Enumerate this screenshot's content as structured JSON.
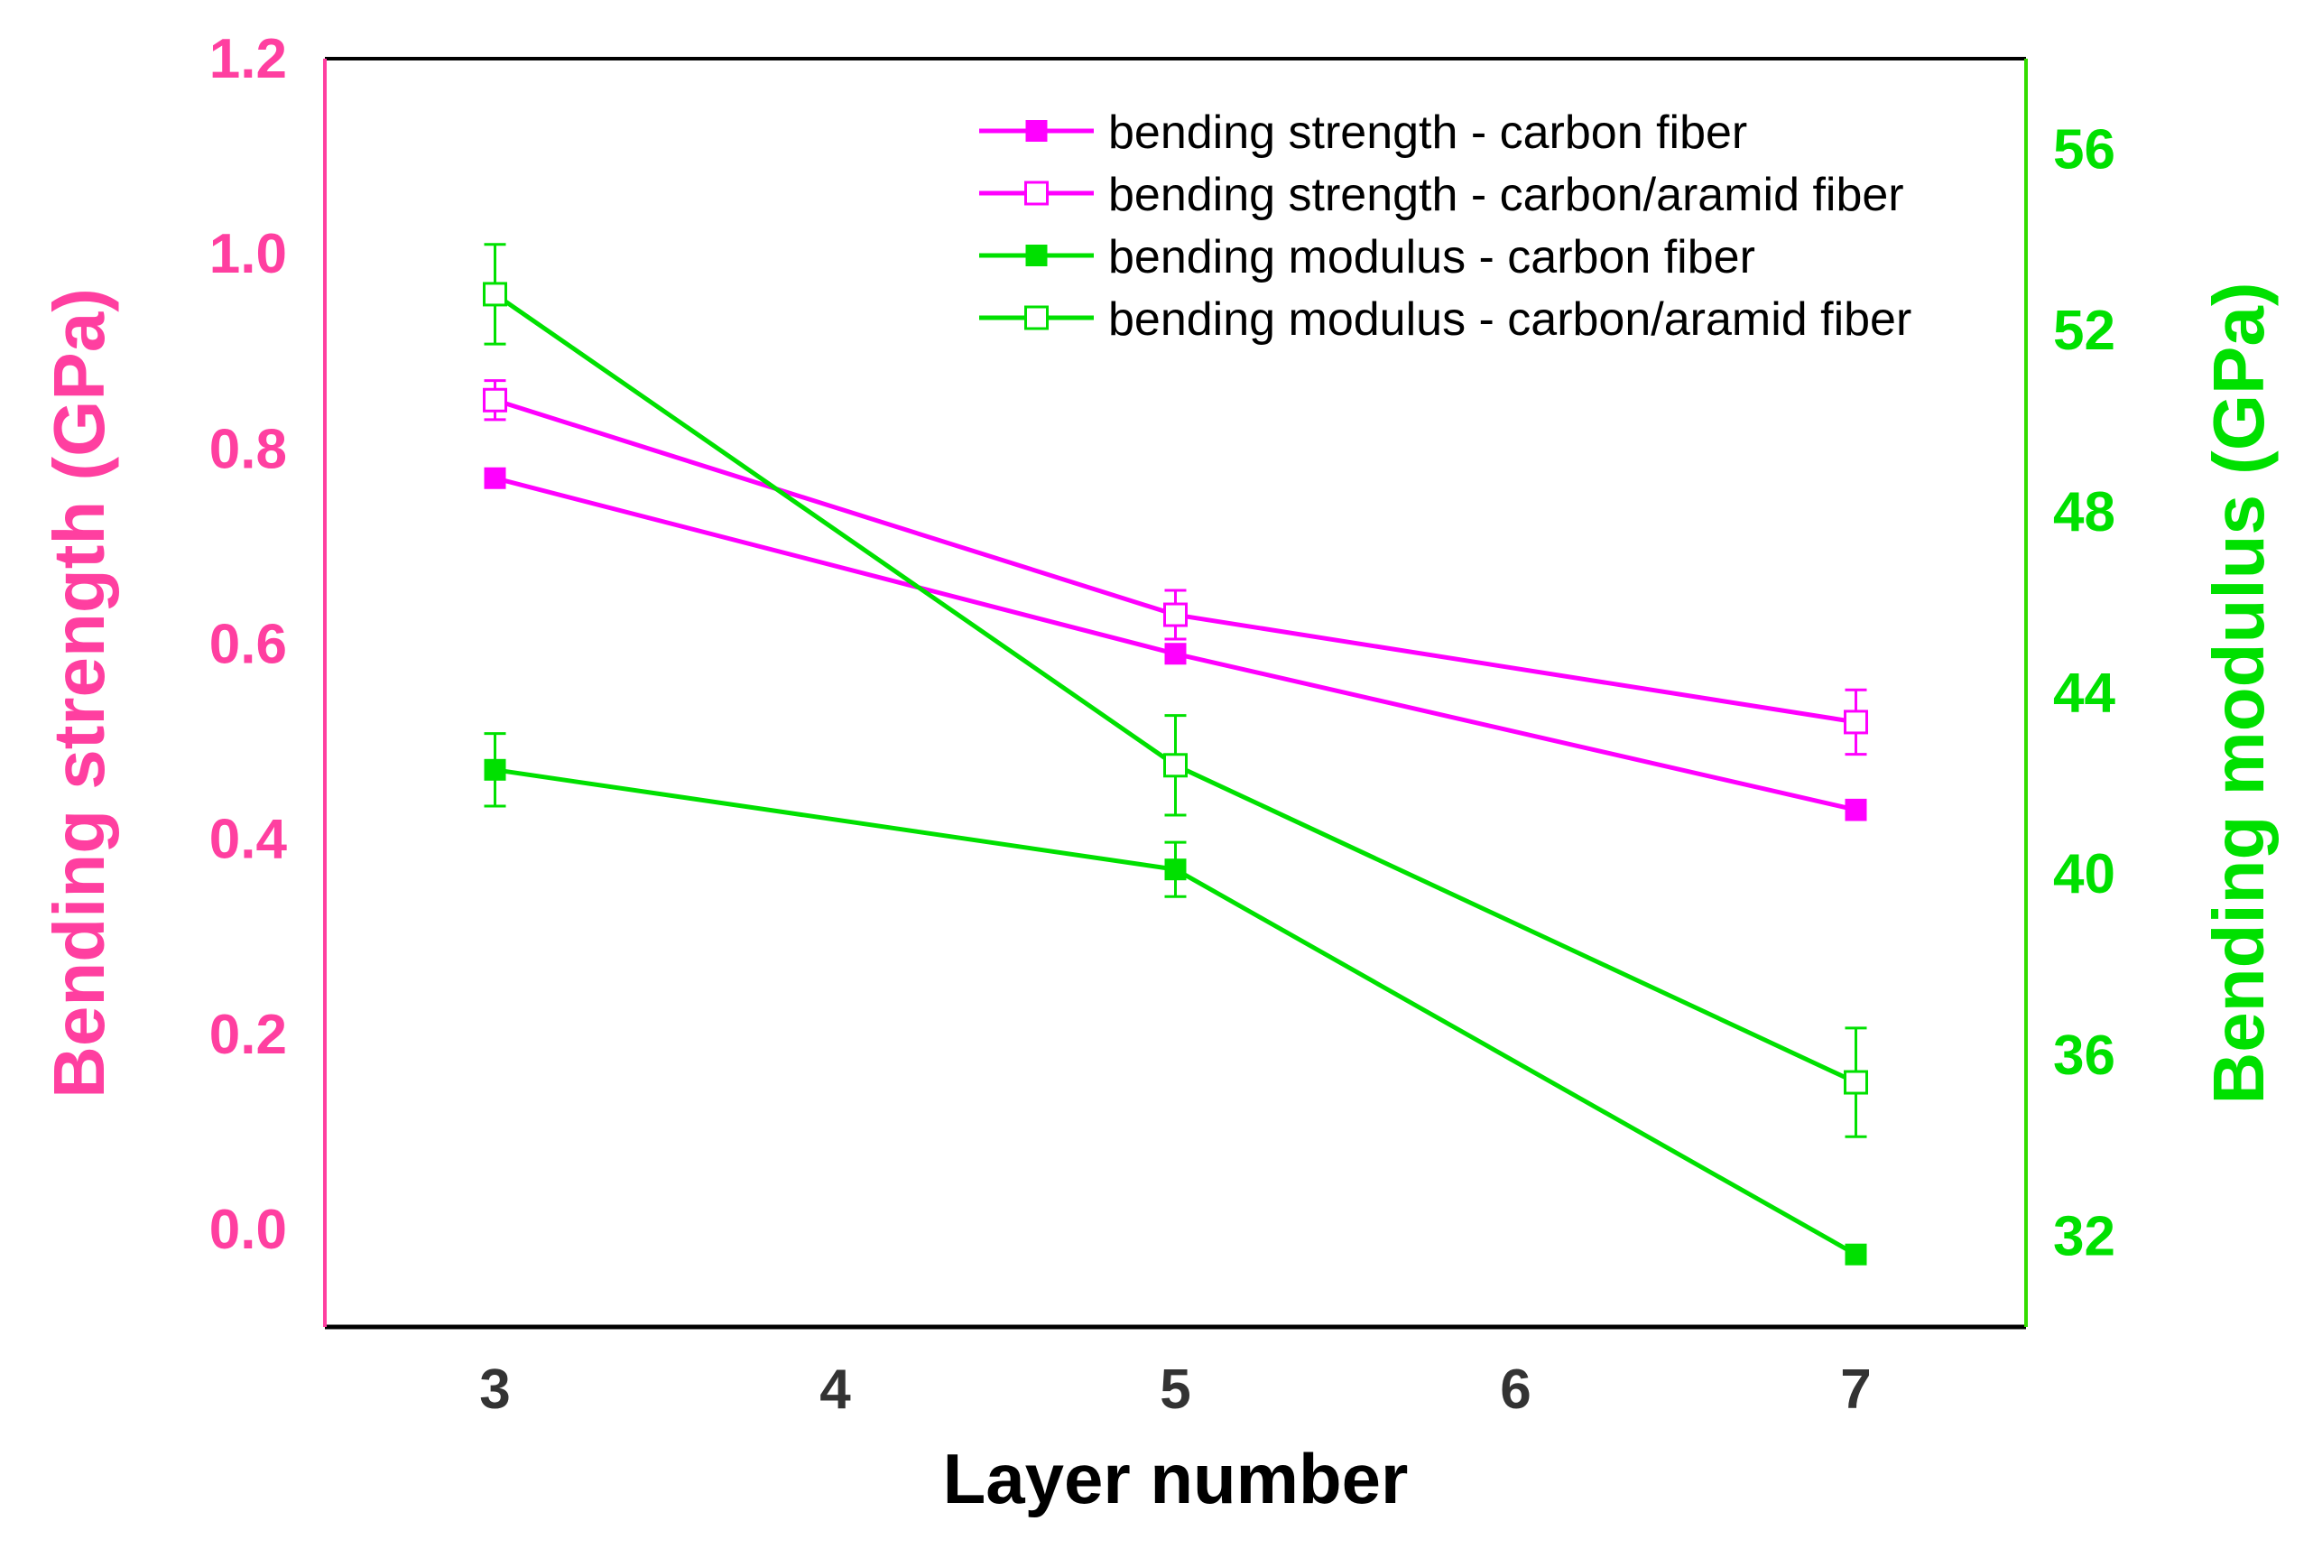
{
  "colors": {
    "strength": "#ff00ff",
    "strength_axis": "#ff3fa0",
    "modulus": "#00e000",
    "modulus_axis": "#33dd00",
    "frame": "#000000",
    "xaxis_text": "#333333"
  },
  "chart_data": {
    "type": "line",
    "x": [
      3,
      5,
      7
    ],
    "xlabel": "Layer  number",
    "x_ticks": [
      3,
      4,
      5,
      6,
      7
    ],
    "x_tick_labels": [
      "3",
      "4",
      "5",
      "6",
      "7"
    ],
    "xlim": [
      2.5,
      7.5
    ],
    "y_left": {
      "label": "Bending strength  (GPa)",
      "lim": [
        -0.1,
        1.2
      ],
      "ticks": [
        0.0,
        0.2,
        0.4,
        0.6,
        0.8,
        1.0,
        1.2
      ],
      "tick_labels": [
        "0.0",
        "0.2",
        "0.4",
        "0.6",
        "0.8",
        "1.0",
        "1.2"
      ]
    },
    "y_right": {
      "label": "Bending modulus  (GPa)",
      "lim": [
        30.0,
        58.0
      ],
      "ticks": [
        32,
        36,
        40,
        44,
        48,
        52,
        56
      ],
      "tick_labels": [
        "32",
        "36",
        "40",
        "44",
        "48",
        "52",
        "56"
      ]
    },
    "series": [
      {
        "name": "bending strength - carbon fiber",
        "axis": "left",
        "color_key": "strength",
        "marker": "filled-square",
        "values": [
          0.77,
          0.59,
          0.43
        ],
        "errors": [
          0.0,
          0.0,
          0.01
        ]
      },
      {
        "name": "bending strength - carbon/aramid fiber",
        "axis": "left",
        "color_key": "strength",
        "marker": "open-square",
        "values": [
          0.85,
          0.63,
          0.52
        ],
        "errors": [
          0.02,
          0.025,
          0.033
        ]
      },
      {
        "name": "bending modulus - carbon fiber",
        "axis": "right",
        "color_key": "modulus",
        "marker": "filled-square",
        "values": [
          42.3,
          40.1,
          31.6
        ],
        "errors": [
          0.8,
          0.6,
          0.0
        ]
      },
      {
        "name": "bending modulus - carbon/aramid fiber",
        "axis": "right",
        "color_key": "modulus",
        "marker": "open-square",
        "values": [
          52.8,
          42.4,
          35.4
        ],
        "errors": [
          1.1,
          1.1,
          1.2
        ]
      }
    ],
    "legend": "top-right",
    "grid": false
  }
}
